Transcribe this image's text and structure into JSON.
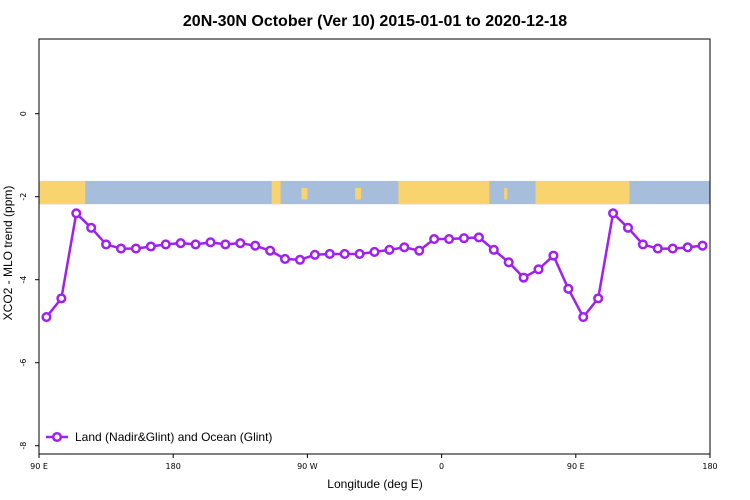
{
  "chart_data": {
    "type": "line",
    "title": "20N-30N October (Ver 10)   2015-01-01 to 2020-12-18",
    "xlabel": "Longitude (deg E)",
    "ylabel": "XCO2 - MLO trend (ppm)",
    "x_unwrapped_range": [
      90,
      540
    ],
    "xticks": [
      {
        "pos": 90,
        "label": "90 E"
      },
      {
        "pos": 180,
        "label": "180"
      },
      {
        "pos": 270,
        "label": "90 W"
      },
      {
        "pos": 360,
        "label": "0"
      },
      {
        "pos": 450,
        "label": "90 E"
      },
      {
        "pos": 540,
        "label": "180"
      }
    ],
    "ylim": [
      -8.2,
      1.8
    ],
    "yticks": [
      {
        "pos": 0,
        "label": "0"
      },
      {
        "pos": -2,
        "label": "-2"
      },
      {
        "pos": -4,
        "label": "-4"
      },
      {
        "pos": -6,
        "label": "-6"
      },
      {
        "pos": -8,
        "label": "-8"
      }
    ],
    "grid": false,
    "legend_position": "bottom-left",
    "series": [
      {
        "name": "Land (Nadir&Glint) and Ocean (Glint)",
        "color": "#a020f0",
        "x": [
          95,
          105,
          115,
          125,
          135,
          145,
          155,
          165,
          175,
          185,
          195,
          205,
          215,
          225,
          235,
          245,
          255,
          265,
          275,
          285,
          295,
          305,
          315,
          325,
          335,
          345,
          355,
          365,
          375,
          385,
          395,
          405,
          415,
          425,
          435,
          445,
          455,
          465,
          475,
          485,
          495,
          505,
          515,
          525,
          535
        ],
        "y": [
          -4.9,
          -4.45,
          -2.4,
          -2.75,
          -3.15,
          -3.25,
          -3.25,
          -3.2,
          -3.15,
          -3.12,
          -3.15,
          -3.1,
          -3.15,
          -3.12,
          -3.18,
          -3.3,
          -3.5,
          -3.52,
          -3.4,
          -3.38,
          -3.38,
          -3.38,
          -3.33,
          -3.28,
          -3.22,
          -3.3,
          -3.02,
          -3.02,
          -3.0,
          -2.98,
          -3.28,
          -3.58,
          -3.95,
          -3.75,
          -3.42,
          -4.22,
          -4.9,
          -4.45,
          -2.4,
          -2.75,
          -3.15,
          -3.25,
          -3.25,
          -3.22,
          -3.18
        ]
      }
    ],
    "map_strip": {
      "ocean_color": "#a6bddb",
      "land_color": "#f8d36e",
      "y_top": -1.62,
      "y_bottom": -2.18,
      "land_segments": [
        [
          90,
          121
        ],
        [
          246,
          252
        ],
        [
          331,
          392
        ],
        [
          423,
          486
        ]
      ],
      "islands": [
        [
          266,
          270
        ],
        [
          302,
          306
        ],
        [
          364,
          366
        ],
        [
          402,
          404
        ]
      ]
    }
  }
}
